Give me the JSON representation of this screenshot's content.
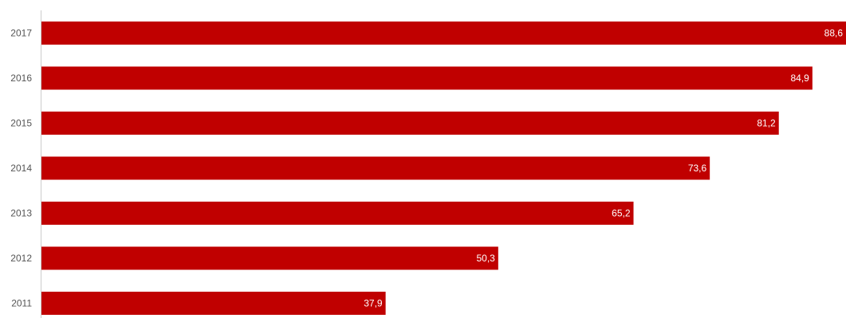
{
  "chart_data": {
    "type": "bar",
    "orientation": "horizontal",
    "categories": [
      "2017",
      "2016",
      "2015",
      "2014",
      "2013",
      "2012",
      "2011"
    ],
    "values": [
      88.6,
      84.9,
      81.2,
      73.6,
      65.2,
      50.3,
      37.9
    ],
    "value_labels": [
      "88,6",
      "84,9",
      "81,2",
      "73,6",
      "65,2",
      "50,3",
      "37,9"
    ],
    "title": "",
    "xlabel": "",
    "ylabel": "",
    "xlim": [
      0,
      88.6
    ],
    "grid": false,
    "legend": "none",
    "bar_color": "#c00000",
    "value_label_color": "#ffffff",
    "axis_color": "#cccccc"
  }
}
